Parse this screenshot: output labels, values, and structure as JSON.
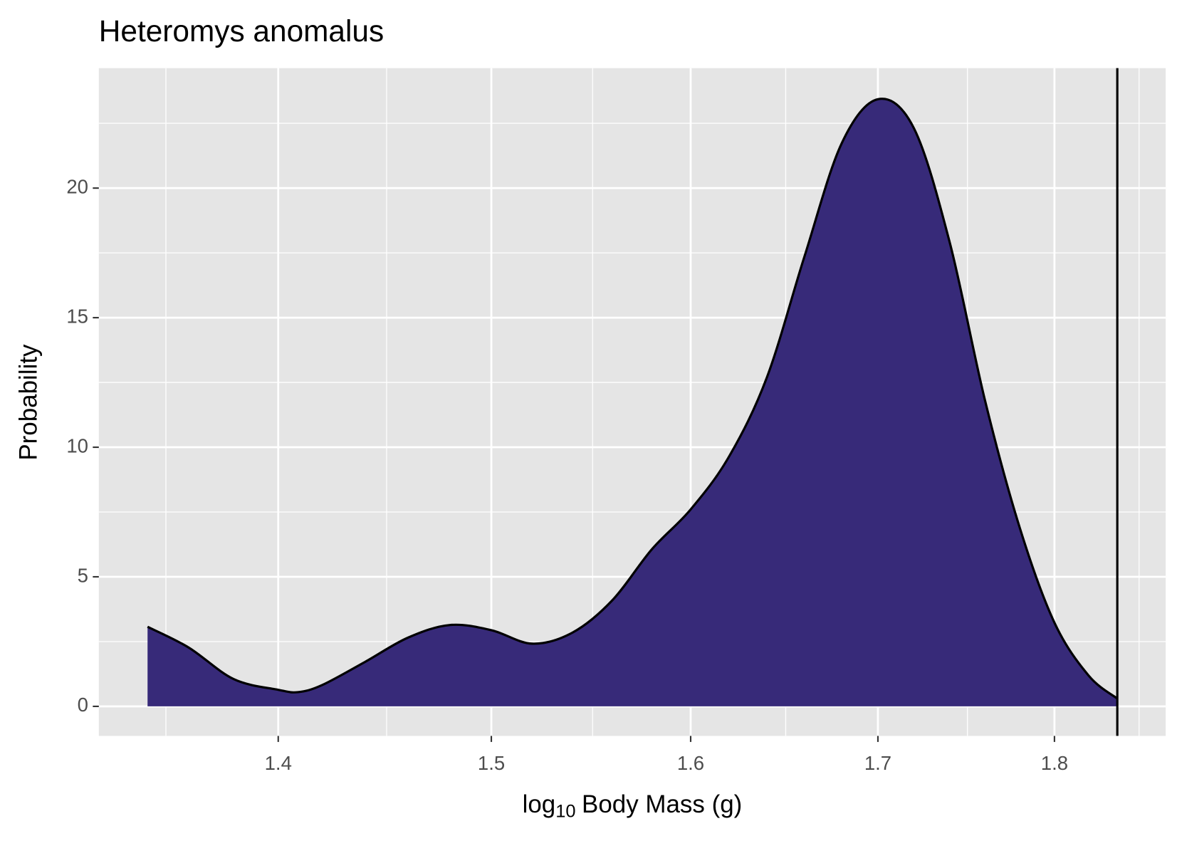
{
  "chart_data": {
    "type": "area",
    "title": "Heteromys anomalus",
    "x_label_parts": [
      "log",
      "10",
      "Body Mass (g)"
    ],
    "y_label": "Probability",
    "x": [
      1.342,
      1.36,
      1.38,
      1.4,
      1.409,
      1.42,
      1.44,
      1.46,
      1.48,
      1.5,
      1.52,
      1.54,
      1.56,
      1.58,
      1.6,
      1.62,
      1.64,
      1.66,
      1.68,
      1.7,
      1.72,
      1.74,
      1.76,
      1.78,
      1.8,
      1.82,
      1.837
    ],
    "y": [
      3.07,
      2.27,
      1.05,
      0.64,
      0.55,
      0.82,
      1.72,
      2.65,
      3.14,
      2.94,
      2.42,
      2.85,
      4.1,
      6.06,
      7.6,
      9.64,
      12.7,
      17.35,
      21.7,
      23.43,
      22.3,
      17.9,
      11.8,
      6.87,
      3.23,
      1.19,
      0.3
    ],
    "color": "#372a79",
    "xintercept": 1.837,
    "xscale": "log",
    "xlim": [
      1.321,
      1.866
    ],
    "ylim": [
      -1.14,
      24.63
    ],
    "xticks": [
      1.4,
      1.5,
      1.6,
      1.7,
      1.8
    ],
    "x_minor_ticks": [
      1.35,
      1.45,
      1.55,
      1.65,
      1.75,
      1.85
    ],
    "yticks": [
      0,
      5,
      10,
      15,
      20
    ],
    "y_minor_ticks": [
      2.5,
      7.5,
      12.5,
      17.5,
      22.5
    ],
    "grid": true
  }
}
